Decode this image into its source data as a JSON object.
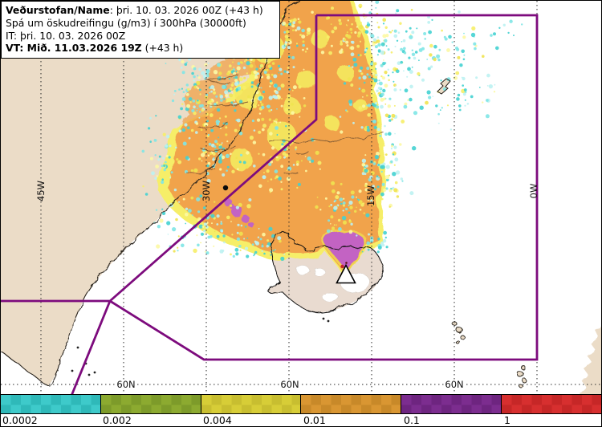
{
  "header": {
    "line1_bold": "Veðurstofan/Name",
    "line1_rest": ": þri. 10. 03. 2026 00Z (+43 h)",
    "line2": "Spá um öskudreifingu (g/m3) í 300hPa (30000ft)",
    "line3": "IT: þri. 10. 03. 2026 00Z",
    "line4_bold": "VT: Mið. 11.03.2026 19Z",
    "line4_rest": " (+43 h)"
  },
  "map": {
    "meridian_labels": {
      "m45": "45W",
      "m30": "30W",
      "m15": "15W",
      "m0": "0W"
    },
    "parallel_label": "60N",
    "colors": {
      "sea": "#ffffff",
      "land": "#ebdcc7",
      "coast": "#26201a",
      "fjord": "#8a6136",
      "ash_trace_cyan": "#44d2d2",
      "ash_yellow": "#f6ee68",
      "ash_orange": "#f1a34c",
      "ash_magenta": "#c364c3",
      "fir_boundary": "#7d0b7d",
      "graticule": "#2a2a2a"
    },
    "markers": {
      "volcano": "triangle",
      "eruption_dot": "red",
      "point_marker": "black-dot"
    }
  },
  "colorbar": {
    "unit": "g/m3",
    "segments": [
      {
        "label": "0.0002",
        "color": "#3ecaca",
        "color_alt": "#2fb9b9"
      },
      {
        "label": "0.002",
        "color": "#8caa30",
        "color_alt": "#7d9b2a"
      },
      {
        "label": "0.004",
        "color": "#d7cd37",
        "color_alt": "#c8be30"
      },
      {
        "label": "0.01",
        "color": "#d99632",
        "color_alt": "#c88929"
      },
      {
        "label": "0.1",
        "color": "#7c2d8f",
        "color_alt": "#6e2580"
      },
      {
        "label": "1",
        "color": "#d72f2f",
        "color_alt": "#c62727"
      }
    ]
  }
}
